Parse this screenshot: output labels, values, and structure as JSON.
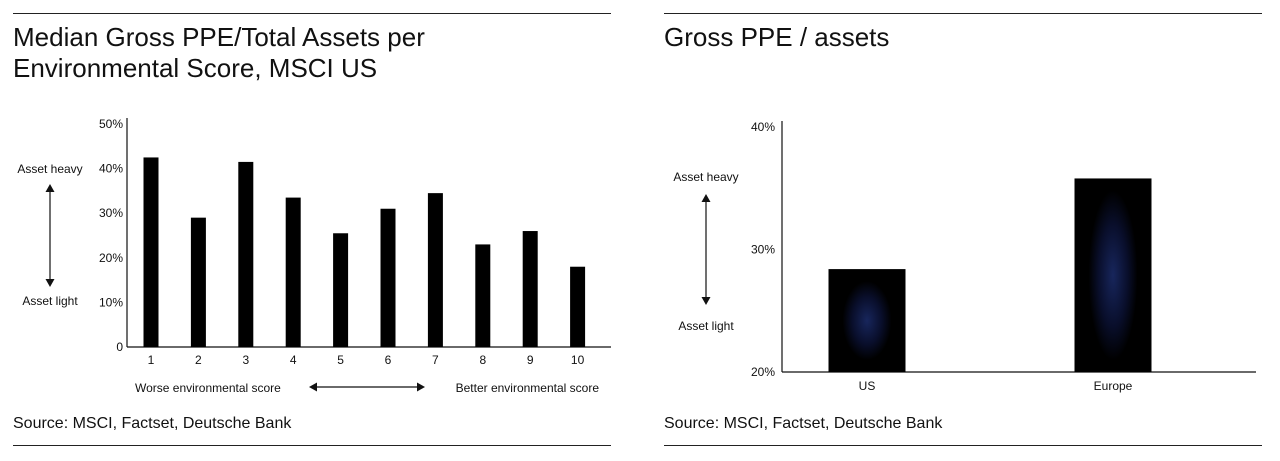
{
  "left": {
    "title_line1": "Median Gross PPE/Total Assets per",
    "title_line2": "Environmental Score, MSCI US",
    "source": "Source: MSCI, Factset, Deutsche Bank"
  },
  "right": {
    "title": "Gross PPE / assets",
    "source": "Source: MSCI, Factset, Deutsche Bank"
  },
  "chart_data": [
    {
      "type": "bar",
      "title": "Median Gross PPE/Total Assets per Environmental Score, MSCI US",
      "categories": [
        "1",
        "2",
        "3",
        "4",
        "5",
        "6",
        "7",
        "8",
        "9",
        "10"
      ],
      "values": [
        0.425,
        0.29,
        0.415,
        0.335,
        0.255,
        0.31,
        0.345,
        0.23,
        0.26,
        0.18
      ],
      "ylim": [
        0,
        0.5
      ],
      "yticks": [
        0,
        0.1,
        0.2,
        0.3,
        0.4,
        0.5
      ],
      "ytick_labels": [
        "0",
        "10%",
        "20%",
        "30%",
        "40%",
        "50%"
      ],
      "annotations": {
        "y_top": "Asset heavy",
        "y_bottom": "Asset light",
        "x_left": "Worse environmental score",
        "x_right": "Better environmental score"
      },
      "bar_color": "#000000",
      "grid": false
    },
    {
      "type": "bar",
      "title": "Gross PPE / assets",
      "categories": [
        "US",
        "Europe"
      ],
      "values": [
        0.284,
        0.358
      ],
      "ylim": [
        0.2,
        0.4
      ],
      "yticks": [
        0.2,
        0.3,
        0.4
      ],
      "ytick_labels": [
        "20%",
        "30%",
        "40%"
      ],
      "annotations": {
        "y_top": "Asset heavy",
        "y_bottom": "Asset light"
      },
      "bar_color": "#000000",
      "bar_glow_color": "#1a2a66",
      "grid": false
    }
  ]
}
